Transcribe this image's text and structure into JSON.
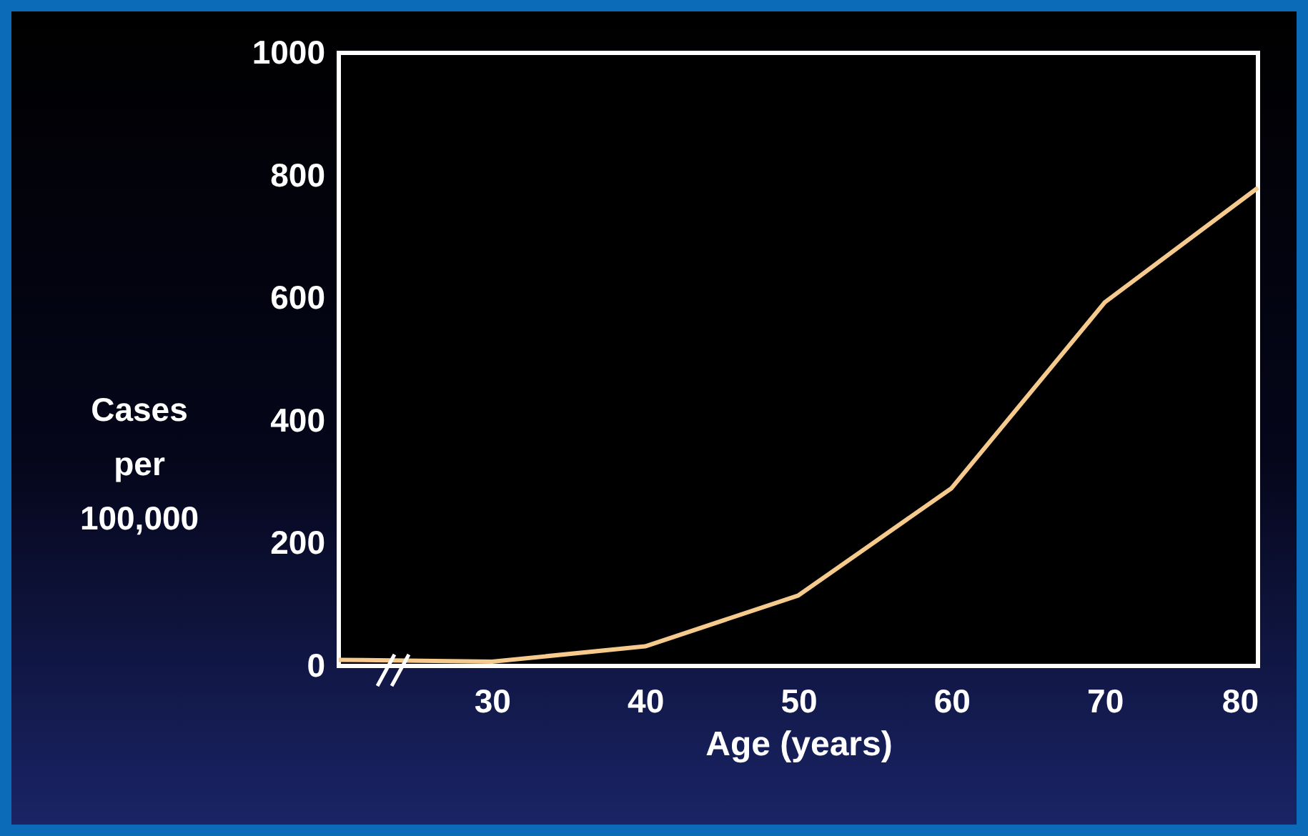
{
  "chart_data": {
    "type": "line",
    "xlabel": "Age (years)",
    "ylabel": "Cases per 100,000",
    "x": [
      20,
      30,
      40,
      50,
      60,
      70,
      80
    ],
    "series": [
      {
        "color": "#f6c98c",
        "values": [
          10,
          7,
          32,
          115,
          290,
          593,
          780
        ]
      }
    ],
    "xlim": [
      20,
      80
    ],
    "xticks": [
      30,
      40,
      50,
      60,
      70,
      80
    ],
    "ylim": [
      0,
      1000
    ],
    "yticks": [
      0,
      200,
      400,
      600,
      800,
      1000
    ],
    "grid": false,
    "legend": false,
    "marker": "none",
    "line_style": "solid"
  }
}
